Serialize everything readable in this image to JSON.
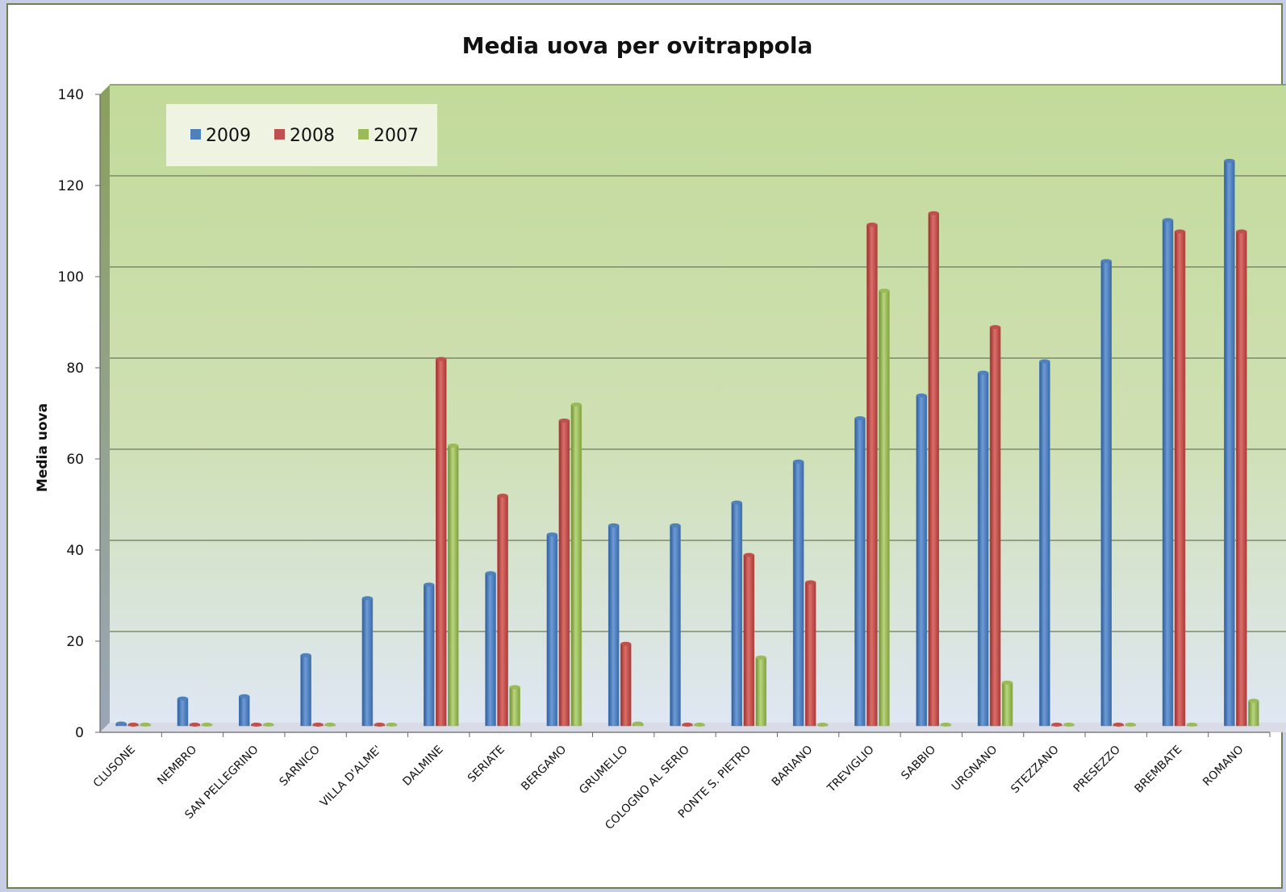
{
  "chart_data": {
    "type": "bar",
    "title": "Media uova per ovitrappola",
    "xlabel": "",
    "ylabel": "Media uova",
    "ylim": [
      0,
      140
    ],
    "yticks": [
      0,
      20,
      40,
      60,
      80,
      100,
      120,
      140
    ],
    "grid": true,
    "legend_position": "top-left",
    "categories": [
      "CLUSONE",
      "NEMBRO",
      "SAN PELLEGRINO",
      "SARNICO",
      "VILLA D'ALME'",
      "DALMINE",
      "SERIATE",
      "BERGAMO",
      "GRUMELLO",
      "COLOGNO AL SERIO",
      "PONTE S. PIETRO",
      "BARIANO",
      "TREVIGLIO",
      "SABBIO",
      "URGNANO",
      "STEZZANO",
      "PRESEZZO",
      "BREMBATE",
      "ROMANO"
    ],
    "series": [
      {
        "name": "2009",
        "color": "#4f81bd",
        "values": [
          0.5,
          6,
          6.5,
          15.5,
          28,
          31,
          33.5,
          42,
          44,
          44,
          49,
          58,
          67.5,
          72.5,
          77.5,
          80,
          102,
          111,
          124
        ]
      },
      {
        "name": "2008",
        "color": "#c0504d",
        "values": [
          0,
          0,
          0,
          0,
          0,
          80.5,
          50.5,
          67,
          18,
          0,
          37.5,
          31.5,
          110,
          112.5,
          87.5,
          0,
          0,
          108.5,
          108.5
        ]
      },
      {
        "name": "2007",
        "color": "#9bbb59",
        "values": [
          0,
          0,
          0,
          0,
          0,
          61.5,
          8.5,
          70.5,
          0.5,
          0,
          15,
          0,
          95.5,
          0,
          9.5,
          0,
          0,
          0,
          5.5
        ]
      }
    ]
  }
}
